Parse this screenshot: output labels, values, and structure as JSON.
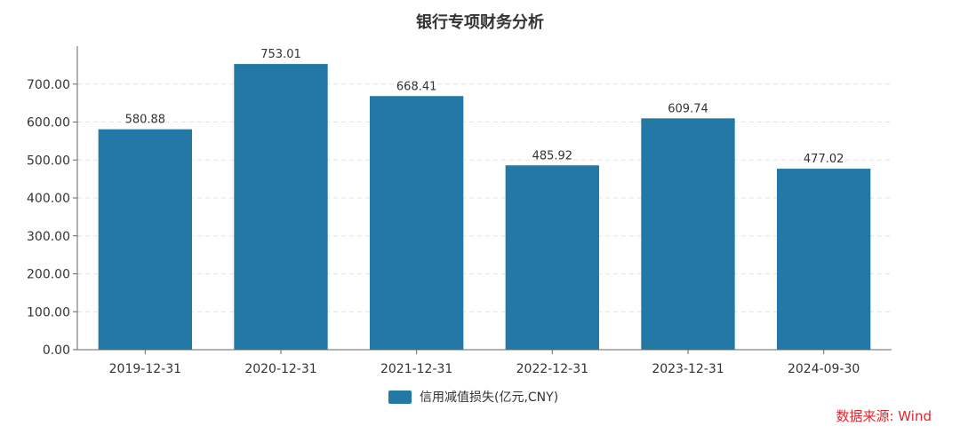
{
  "chart_data": {
    "type": "bar",
    "title": "银行专项财务分析",
    "categories": [
      "2019-12-31",
      "2020-12-31",
      "2021-12-31",
      "2022-12-31",
      "2023-12-31",
      "2024-09-30"
    ],
    "series": [
      {
        "name": "信用减值损失(亿元,CNY)",
        "values": [
          580.88,
          753.01,
          668.41,
          485.92,
          609.74,
          477.02
        ],
        "labels": [
          "580.88",
          "753.01",
          "668.41",
          "485.92",
          "609.74",
          "477.02"
        ],
        "color": "#2378a5"
      }
    ],
    "ylim": [
      0,
      800
    ],
    "yticks": [
      0,
      100,
      200,
      300,
      400,
      500,
      600,
      700
    ],
    "ytick_labels": [
      "0.00",
      "100.00",
      "200.00",
      "300.00",
      "400.00",
      "500.00",
      "600.00",
      "700.00"
    ],
    "grid": true,
    "legend_position": "bottom-center",
    "xlabel": "",
    "ylabel": ""
  },
  "source": {
    "text": "数据来源: Wind",
    "color": "#e0262b"
  }
}
